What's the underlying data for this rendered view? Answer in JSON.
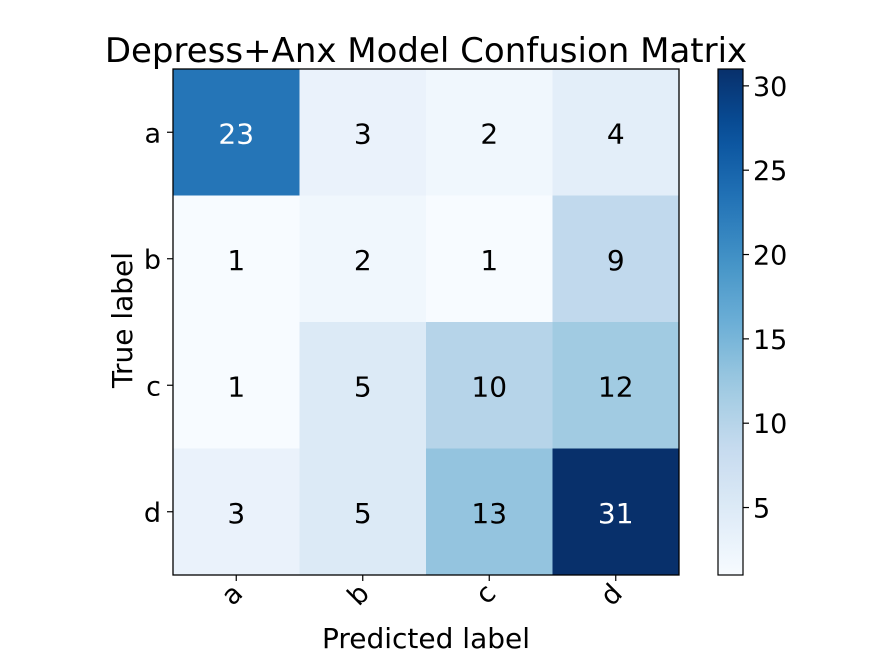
{
  "chart_data": {
    "type": "heatmap",
    "title": "Depress+Anx Model Confusion Matrix",
    "xlabel": "Predicted label",
    "ylabel": "True label",
    "x_categories": [
      "a",
      "b",
      "c",
      "d"
    ],
    "y_categories": [
      "a",
      "b",
      "c",
      "d"
    ],
    "values": [
      [
        23,
        3,
        2,
        4
      ],
      [
        1,
        2,
        1,
        9
      ],
      [
        1,
        5,
        10,
        12
      ],
      [
        3,
        5,
        13,
        31
      ]
    ],
    "colormap": "Blues",
    "colorbar": {
      "range": [
        1,
        31
      ],
      "ticks": [
        5,
        10,
        15,
        20,
        25,
        30
      ]
    },
    "grid": false
  }
}
